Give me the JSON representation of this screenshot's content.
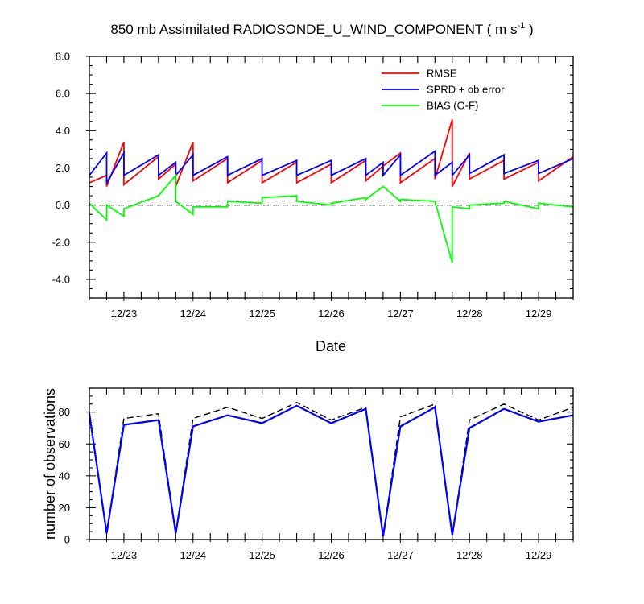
{
  "figure": {
    "title_prefix": "850 mb Assimilated RADIOSONDE_U_WIND_COMPONENT ( m s",
    "title_sup": "-1",
    "title_suffix": " )"
  },
  "chart_data": [
    {
      "type": "line",
      "xlabel": "Date",
      "ylabel": "",
      "x_tick_labels": [
        "12/23",
        "12/24",
        "12/25",
        "12/26",
        "12/27",
        "12/28",
        "12/29"
      ],
      "x_tick_positions": [
        23.0,
        24.0,
        25.0,
        26.0,
        27.0,
        28.0,
        29.0
      ],
      "xlim": [
        22.5,
        29.5
      ],
      "ylim": [
        -5.0,
        8.0
      ],
      "y_ticks": [
        -4.0,
        -2.0,
        0.0,
        2.0,
        4.0,
        6.0,
        8.0
      ],
      "y_tick_labels": [
        "-4.0",
        "-2.0",
        "0.0",
        "2.0",
        "4.0",
        "6.0",
        "8.0"
      ],
      "grid": false,
      "legend_position": "top-right",
      "reference_line": {
        "y": 0.0,
        "style": "dashed",
        "color": "#000000"
      },
      "series": [
        {
          "name": "RMSE",
          "color": "#ff0000",
          "x": [
            22.5,
            22.75,
            22.75,
            23.0,
            23.0,
            23.5,
            23.5,
            23.75,
            23.75,
            24.0,
            24.0,
            24.5,
            24.5,
            25.0,
            25.0,
            25.5,
            25.5,
            26.0,
            26.0,
            26.5,
            26.5,
            26.75,
            26.75,
            27.0,
            27.0,
            27.5,
            27.5,
            27.75,
            27.75,
            28.0,
            28.0,
            28.5,
            28.5,
            29.0,
            29.0,
            29.5
          ],
          "y": [
            1.2,
            1.6,
            1.0,
            3.4,
            1.1,
            2.6,
            1.4,
            2.2,
            1.0,
            3.4,
            1.3,
            2.5,
            1.2,
            2.4,
            1.2,
            2.3,
            1.2,
            2.2,
            1.2,
            2.4,
            1.3,
            2.1,
            2.1,
            2.8,
            1.2,
            2.5,
            1.4,
            4.6,
            1.0,
            2.8,
            1.4,
            2.4,
            1.4,
            2.3,
            1.3,
            2.6
          ]
        },
        {
          "name": "SPRD + ob error",
          "color": "#0000ff",
          "x": [
            22.5,
            22.75,
            22.75,
            23.0,
            23.0,
            23.5,
            23.5,
            23.75,
            23.75,
            24.0,
            24.0,
            24.5,
            24.5,
            25.0,
            25.0,
            25.5,
            25.5,
            26.0,
            26.0,
            26.5,
            26.5,
            26.75,
            26.75,
            27.0,
            27.0,
            27.5,
            27.5,
            27.75,
            27.75,
            28.0,
            28.0,
            28.5,
            28.5,
            29.0,
            29.0,
            29.5
          ],
          "y": [
            1.6,
            2.8,
            1.2,
            2.8,
            1.6,
            2.7,
            1.6,
            2.3,
            1.6,
            2.7,
            1.6,
            2.6,
            1.6,
            2.5,
            1.6,
            2.4,
            1.6,
            2.4,
            1.6,
            2.5,
            1.6,
            2.3,
            1.6,
            2.7,
            1.6,
            2.9,
            1.6,
            2.3,
            1.6,
            2.7,
            1.7,
            2.7,
            1.7,
            2.4,
            1.7,
            2.5
          ]
        },
        {
          "name": "BIAS (O-F)",
          "color": "#00ff00",
          "x": [
            22.5,
            22.75,
            22.75,
            23.0,
            23.0,
            23.5,
            23.75,
            23.75,
            24.0,
            24.0,
            24.5,
            24.5,
            25.0,
            25.0,
            25.5,
            25.5,
            26.0,
            26.0,
            26.5,
            26.5,
            26.75,
            27.0,
            27.0,
            27.5,
            27.75,
            27.75,
            28.0,
            28.0,
            28.5,
            28.5,
            29.0,
            29.0,
            29.5
          ],
          "y": [
            0.1,
            -0.8,
            0.0,
            -0.6,
            -0.2,
            0.5,
            1.6,
            0.2,
            -0.5,
            -0.1,
            -0.1,
            0.2,
            0.1,
            0.4,
            0.5,
            0.2,
            0.0,
            0.1,
            0.4,
            0.3,
            1.0,
            0.2,
            0.3,
            0.2,
            -3.1,
            -0.1,
            -0.2,
            0.0,
            0.1,
            0.2,
            -0.2,
            0.1,
            -0.1
          ]
        }
      ]
    },
    {
      "type": "line",
      "xlabel": "",
      "ylabel": "number of observations",
      "x_tick_labels": [
        "12/23",
        "12/24",
        "12/25",
        "12/26",
        "12/27",
        "12/28",
        "12/29"
      ],
      "x_tick_positions": [
        23.0,
        24.0,
        25.0,
        26.0,
        27.0,
        28.0,
        29.0
      ],
      "xlim": [
        22.5,
        29.5
      ],
      "ylim": [
        0,
        95
      ],
      "y_ticks": [
        0,
        20,
        40,
        60,
        80
      ],
      "y_tick_labels": [
        "0",
        "20",
        "40",
        "60",
        "80"
      ],
      "grid": false,
      "series": [
        {
          "name": "",
          "color": "#000000",
          "style": "dashed",
          "x": [
            22.5,
            22.75,
            23.0,
            23.5,
            23.75,
            24.0,
            24.5,
            25.0,
            25.5,
            26.0,
            26.5,
            26.75,
            27.0,
            27.5,
            27.75,
            28.0,
            28.5,
            29.0,
            29.5
          ],
          "y": [
            80,
            4,
            76,
            79,
            4,
            76,
            83,
            76,
            86,
            75,
            83,
            2,
            77,
            85,
            3,
            75,
            85,
            75,
            83
          ]
        },
        {
          "name": "",
          "color": "#0000ff",
          "style": "solid",
          "x": [
            22.5,
            22.75,
            23.0,
            23.5,
            23.75,
            24.0,
            24.5,
            25.0,
            25.5,
            26.0,
            26.5,
            26.75,
            27.0,
            27.5,
            27.75,
            28.0,
            28.5,
            29.0,
            29.5
          ],
          "y": [
            79,
            4,
            72,
            75,
            4,
            71,
            78,
            73,
            84,
            73,
            82,
            2,
            71,
            83,
            3,
            70,
            82,
            74,
            78
          ]
        }
      ]
    }
  ]
}
